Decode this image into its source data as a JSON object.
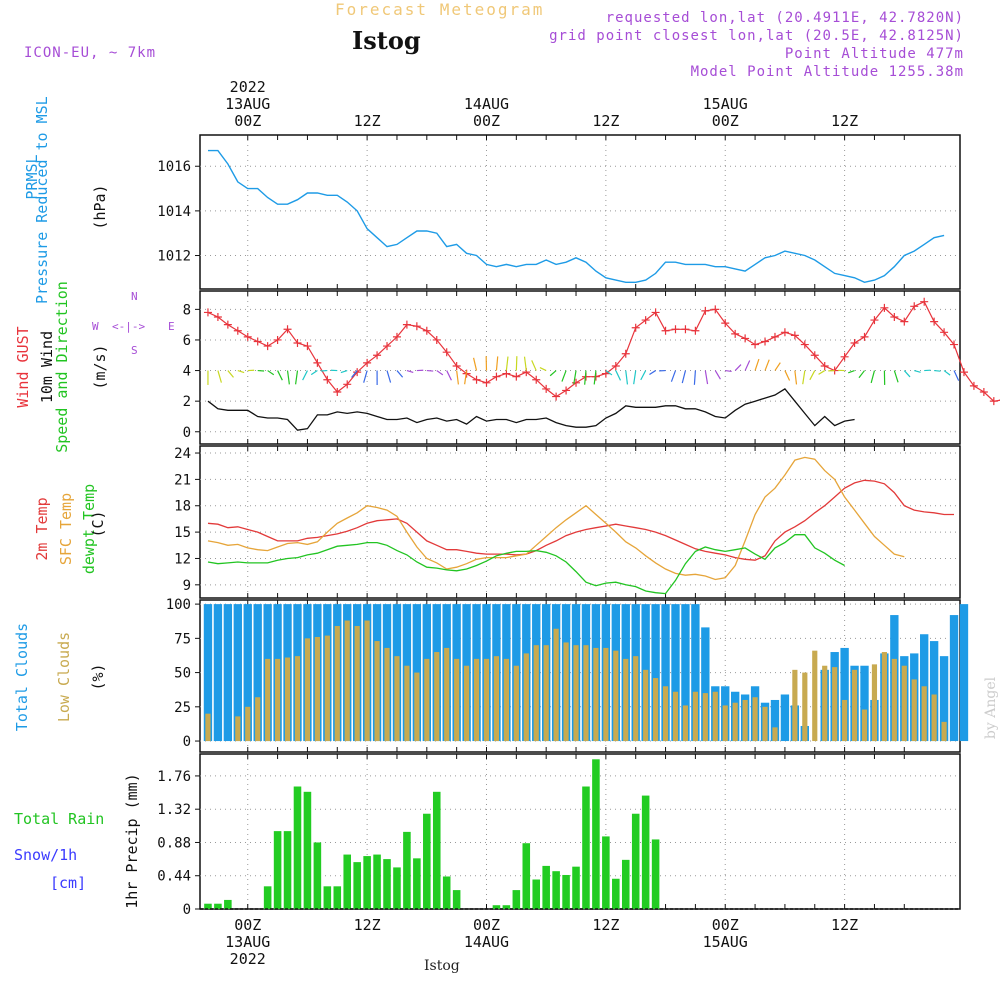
{
  "header": {
    "title": "Forecast Meteogram",
    "station": "Istog",
    "model": "ICON-EU, ~ 7km",
    "requested": "requested lon,lat (20.4911E, 42.7820N)",
    "grid_point": "grid point closest lon,lat (20.5E, 42.8125N)",
    "point_alt": "Point Altitude 477m",
    "model_alt": "Model Point Altitude 1255.38m",
    "watermark": "by Angel",
    "footer_station": "Istog"
  },
  "time_axis": {
    "top": [
      {
        "t": 0,
        "lines": [
          "2022",
          "13AUG",
          "00Z"
        ]
      },
      {
        "t": 12,
        "lines": [
          "12Z"
        ]
      },
      {
        "t": 24,
        "lines": [
          "14AUG",
          "00Z"
        ]
      },
      {
        "t": 36,
        "lines": [
          "12Z"
        ]
      },
      {
        "t": 48,
        "lines": [
          "15AUG",
          "00Z"
        ]
      },
      {
        "t": 60,
        "lines": [
          "12Z"
        ]
      }
    ],
    "bottom": [
      {
        "t": 0,
        "lines": [
          "00Z",
          "13AUG",
          "2022"
        ]
      },
      {
        "t": 12,
        "lines": [
          "12Z"
        ]
      },
      {
        "t": 24,
        "lines": [
          "00Z",
          "14AUG"
        ]
      },
      {
        "t": 36,
        "lines": [
          "12Z"
        ]
      },
      {
        "t": 48,
        "lines": [
          "00Z",
          "15AUG"
        ]
      },
      {
        "t": 60,
        "lines": [
          "12Z"
        ]
      }
    ]
  },
  "panel_labels": {
    "pressure": {
      "l1": "PRMSL",
      "l2": "Pressure Reduced to MSL",
      "unit": "(hPa)"
    },
    "wind": {
      "gust": "Wind GUST",
      "w10": "10m Wind",
      "dir": "Speed and Direction",
      "unit": "(m/s)",
      "compass": {
        "n": "N",
        "s": "S",
        "e": "E",
        "w": "W",
        "arrows": "<-|->"
      }
    },
    "temp": {
      "t2m": "2m Temp",
      "sfc": "SFC Temp",
      "dew": "dewpt Temp",
      "unit": "(C)"
    },
    "clouds": {
      "total": "Total Clouds",
      "low": "Low Clouds",
      "unit": "(%)"
    },
    "precip": {
      "rain": "Total  Rain",
      "snow": "Snow/1h",
      "cm": "[cm]",
      "ylabel": "1hr Precip (mm)"
    }
  },
  "colors": {
    "pressure": "#1e9be6",
    "gust": "#e8343c",
    "wind10": "#111111",
    "t2m": "#e23a3a",
    "sfc": "#e6a53a",
    "dew": "#22c422",
    "total_clouds": "#1e9be6",
    "low_clouds": "#c8aa50",
    "rain": "#22cc22",
    "snow": "#3a3aff",
    "purple": "#a64dd6"
  },
  "chart_data": [
    {
      "type": "line",
      "name": "PRMSL",
      "title": "PRMSL Pressure Reduced to MSL",
      "ylabel": "(hPa)",
      "ylim": [
        1010.5,
        1017.4
      ],
      "yticks": [
        1012,
        1014,
        1016
      ],
      "x_start": -4,
      "x_step": 1,
      "values": [
        1016.7,
        1016.7,
        1016.1,
        1015.3,
        1015.0,
        1015.0,
        1014.6,
        1014.3,
        1014.3,
        1014.5,
        1014.8,
        1014.8,
        1014.7,
        1014.7,
        1014.4,
        1014.0,
        1013.2,
        1012.8,
        1012.4,
        1012.5,
        1012.8,
        1013.1,
        1013.1,
        1013.0,
        1012.4,
        1012.5,
        1012.1,
        1012.0,
        1011.6,
        1011.5,
        1011.6,
        1011.5,
        1011.6,
        1011.6,
        1011.8,
        1011.6,
        1011.7,
        1011.9,
        1011.7,
        1011.3,
        1011.0,
        1010.9,
        1010.8,
        1010.8,
        1010.9,
        1011.2,
        1011.7,
        1011.7,
        1011.6,
        1011.6,
        1011.6,
        1011.5,
        1011.5,
        1011.4,
        1011.3,
        1011.6,
        1011.9,
        1012.0,
        1012.2,
        1012.1,
        1012.0,
        1011.8,
        1011.5,
        1011.2,
        1011.1,
        1011.0,
        1010.8,
        1010.9,
        1011.1,
        1011.5,
        1012.0,
        1012.2,
        1012.5,
        1012.8,
        1012.9
      ]
    },
    {
      "type": "line",
      "name": "Wind",
      "ylabel": "(m/s)",
      "ylim": [
        -0.8,
        9.2
      ],
      "yticks": [
        0,
        2,
        4,
        6,
        8
      ],
      "x_start": -4,
      "x_step": 1,
      "series": [
        {
          "name": "Wind GUST",
          "values": [
            7.8,
            7.5,
            7.0,
            6.6,
            6.2,
            5.9,
            5.6,
            6.0,
            6.7,
            5.8,
            5.6,
            4.5,
            3.4,
            2.6,
            3.1,
            3.9,
            4.5,
            5.0,
            5.6,
            6.2,
            7.0,
            6.9,
            6.6,
            6.0,
            5.2,
            4.3,
            3.8,
            3.4,
            3.2,
            3.6,
            3.8,
            3.6,
            3.9,
            3.4,
            2.8,
            2.3,
            2.7,
            3.2,
            3.6,
            3.6,
            3.8,
            4.3,
            5.1,
            6.8,
            7.3,
            7.8,
            6.6,
            6.7,
            6.7,
            6.6,
            7.9,
            8.0,
            7.1,
            6.4,
            6.1,
            5.7,
            5.9,
            6.2,
            6.5,
            6.3,
            5.7,
            5.0,
            4.3,
            4.0,
            4.9,
            5.8,
            6.2,
            7.3,
            8.1,
            7.5,
            7.2,
            8.2,
            8.5,
            7.2,
            6.5,
            5.7,
            3.9,
            3.0,
            2.6,
            2.0,
            2.1,
            2.8
          ]
        },
        {
          "name": "10m Wind",
          "values": [
            2.0,
            1.5,
            1.4,
            1.4,
            1.4,
            1.0,
            0.9,
            0.9,
            0.8,
            0.1,
            0.2,
            1.1,
            1.1,
            1.3,
            1.2,
            1.3,
            1.2,
            1.0,
            0.8,
            0.8,
            0.9,
            0.6,
            0.8,
            0.9,
            0.7,
            0.8,
            0.5,
            1.0,
            0.7,
            0.8,
            0.8,
            0.6,
            0.8,
            0.8,
            0.9,
            0.6,
            0.4,
            0.3,
            0.3,
            0.4,
            0.9,
            1.2,
            1.7,
            1.6,
            1.6,
            1.6,
            1.7,
            1.7,
            1.5,
            1.5,
            1.3,
            1.0,
            0.9,
            1.4,
            1.8,
            2.0,
            2.2,
            2.4,
            2.8,
            2.0,
            1.2,
            0.4,
            1.0,
            0.4,
            0.7,
            0.8
          ]
        }
      ],
      "barbs_at_y": 4.0
    },
    {
      "type": "line",
      "name": "Temperature",
      "ylabel": "(C)",
      "ylim": [
        7.5,
        24.8
      ],
      "yticks": [
        9,
        12,
        15,
        18,
        21,
        24
      ],
      "x_start": -4,
      "x_step": 1,
      "series": [
        {
          "name": "2m Temp",
          "values": [
            16.0,
            15.9,
            15.5,
            15.6,
            15.3,
            15.0,
            14.5,
            14.0,
            14.0,
            14.0,
            14.3,
            14.4,
            14.6,
            14.8,
            15.1,
            15.5,
            16.0,
            16.3,
            16.4,
            16.5,
            16.0,
            15.0,
            14.0,
            13.5,
            13.0,
            13.0,
            12.8,
            12.6,
            12.5,
            12.5,
            12.5,
            12.4,
            12.5,
            12.9,
            13.5,
            14.0,
            14.6,
            15.0,
            15.3,
            15.5,
            15.7,
            15.9,
            15.7,
            15.5,
            15.3,
            15.0,
            14.6,
            14.1,
            13.6,
            13.1,
            12.8,
            12.6,
            12.4,
            12.1,
            11.9,
            11.8,
            12.3,
            14.0,
            15.0,
            15.6,
            16.3,
            17.2,
            18.0,
            19.0,
            20.0,
            20.6,
            20.9,
            20.8,
            20.5,
            19.5,
            18.0,
            17.5,
            17.3,
            17.2,
            17.0,
            17.0
          ]
        },
        {
          "name": "SFC Temp",
          "values": [
            14.0,
            13.8,
            13.5,
            13.6,
            13.2,
            13.0,
            12.9,
            13.3,
            13.7,
            13.8,
            13.6,
            13.9,
            15.0,
            16.0,
            16.6,
            17.2,
            18.0,
            17.8,
            17.5,
            16.8,
            15.0,
            13.3,
            12.0,
            11.5,
            10.8,
            11.0,
            11.4,
            11.9,
            12.1,
            12.1,
            12.1,
            12.3,
            12.5,
            13.5,
            14.5,
            15.5,
            16.4,
            17.2,
            18.0,
            17.0,
            16.0,
            15.0,
            13.9,
            13.2,
            12.3,
            11.5,
            10.8,
            10.3,
            10.1,
            10.2,
            10.0,
            9.6,
            9.8,
            11.2,
            14.0,
            17.0,
            19.0,
            20.0,
            21.5,
            23.2,
            23.5,
            23.3,
            22.0,
            21.0,
            19.0,
            17.5,
            16.0,
            14.5,
            13.5,
            12.5,
            12.2
          ]
        },
        {
          "name": "dewpt Temp",
          "values": [
            11.6,
            11.4,
            11.5,
            11.6,
            11.5,
            11.5,
            11.5,
            11.8,
            12.0,
            12.1,
            12.4,
            12.6,
            13.0,
            13.4,
            13.5,
            13.6,
            13.8,
            13.8,
            13.5,
            12.9,
            12.4,
            11.6,
            11.0,
            10.9,
            10.7,
            10.6,
            10.8,
            11.2,
            11.7,
            12.3,
            12.6,
            12.8,
            12.8,
            12.9,
            12.7,
            12.3,
            11.6,
            10.5,
            9.3,
            8.9,
            9.2,
            9.3,
            9.0,
            8.8,
            8.3,
            8.1,
            8.0,
            9.5,
            11.4,
            12.8,
            13.3,
            13.0,
            12.8,
            13.0,
            13.2,
            12.5,
            11.9,
            13.2,
            13.8,
            14.7,
            14.7,
            13.2,
            12.6,
            11.8,
            11.2
          ]
        }
      ]
    },
    {
      "type": "bar",
      "name": "Clouds",
      "ylabel": "(%)",
      "ylim": [
        -8,
        103
      ],
      "yticks": [
        0,
        25,
        50,
        75,
        100
      ],
      "x_start": -4,
      "x_step": 1,
      "series": [
        {
          "name": "Total Clouds",
          "values": [
            100,
            100,
            100,
            100,
            100,
            100,
            100,
            100,
            100,
            100,
            100,
            100,
            100,
            100,
            100,
            100,
            100,
            100,
            100,
            100,
            100,
            100,
            100,
            100,
            100,
            100,
            100,
            100,
            100,
            100,
            100,
            100,
            100,
            100,
            100,
            100,
            100,
            100,
            100,
            100,
            100,
            100,
            100,
            100,
            100,
            100,
            100,
            100,
            100,
            100,
            83,
            40,
            40,
            36,
            34,
            40,
            28,
            30,
            34,
            26,
            11,
            0,
            52,
            65,
            68,
            55,
            55,
            30,
            64,
            92,
            62,
            64,
            78,
            73,
            62,
            92,
            100
          ]
        },
        {
          "name": "Low Clouds",
          "values": [
            20,
            0,
            0,
            18,
            25,
            32,
            60,
            60,
            61,
            62,
            75,
            76,
            77,
            84,
            88,
            84,
            88,
            73,
            68,
            62,
            55,
            50,
            60,
            65,
            68,
            60,
            55,
            60,
            60,
            62,
            60,
            55,
            64,
            70,
            70,
            82,
            72,
            70,
            70,
            68,
            68,
            66,
            60,
            62,
            52,
            46,
            40,
            36,
            26,
            36,
            35,
            36,
            26,
            28,
            30,
            32,
            25,
            10,
            0,
            52,
            50,
            66,
            55,
            54,
            30,
            52,
            23,
            56,
            65,
            60,
            55,
            45,
            40,
            34,
            14
          ]
        }
      ]
    },
    {
      "type": "bar",
      "name": "Precipitation",
      "ylabel": "1hr Precip (mm)",
      "ylim": [
        0,
        2.05
      ],
      "yticks": [
        0,
        0.44,
        0.88,
        1.32,
        1.76
      ],
      "x_start": -4,
      "x_step": 1,
      "series": [
        {
          "name": "Total Rain",
          "values": [
            0.07,
            0.07,
            0.12,
            0,
            0,
            0,
            0.3,
            1.03,
            1.03,
            1.62,
            1.55,
            0.88,
            0.3,
            0.3,
            0.72,
            0.62,
            0.7,
            0.72,
            0.66,
            0.55,
            1.02,
            0.67,
            1.26,
            1.55,
            0.43,
            0.25,
            0,
            0,
            0,
            0.05,
            0.05,
            0.25,
            0.87,
            0.39,
            0.57,
            0.5,
            0.45,
            0.56,
            1.62,
            1.98,
            0.96,
            0.4,
            0.65,
            1.26,
            1.5,
            0.92
          ]
        },
        {
          "name": "Snow/1h",
          "values": []
        }
      ]
    }
  ]
}
